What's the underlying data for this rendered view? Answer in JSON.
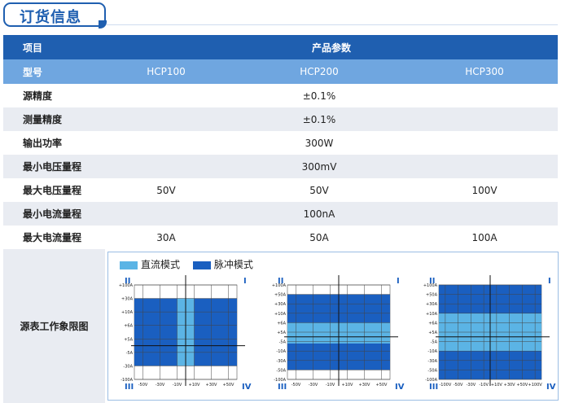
{
  "title": "订货信息",
  "header": {
    "item": "项目",
    "params": "产品参数"
  },
  "model_row": {
    "label": "型号",
    "models": [
      "HCP100",
      "HCP200",
      "HCP300"
    ]
  },
  "rows": [
    {
      "label": "源精度",
      "values": [
        "",
        "±0.1%",
        ""
      ]
    },
    {
      "label": "测量精度",
      "values": [
        "",
        "±0.1%",
        ""
      ]
    },
    {
      "label": "输出功率",
      "values": [
        "",
        "300W",
        ""
      ]
    },
    {
      "label": "最小电压量程",
      "values": [
        "",
        "300mV",
        ""
      ]
    },
    {
      "label": "最大电压量程",
      "values": [
        "50V",
        "50V",
        "100V"
      ]
    },
    {
      "label": "最小电流量程",
      "values": [
        "",
        "100nA",
        ""
      ]
    },
    {
      "label": "最大电流量程",
      "values": [
        "30A",
        "50A",
        "100A"
      ]
    }
  ],
  "chart_section": {
    "label": "源表工作象限图",
    "legend": [
      {
        "label": "直流模式",
        "color": "#5bb4e5"
      },
      {
        "label": "脉冲模式",
        "color": "#1a5fc0"
      }
    ],
    "quadrant_labels": {
      "q1": "I",
      "q2": "II",
      "q3": "III",
      "q4": "IV"
    }
  },
  "chart_data": [
    {
      "type": "heatmap",
      "title": "HCP100",
      "x_ticks": [
        "-50V",
        "-30V",
        "-10V",
        "+10V",
        "+30V",
        "+50V"
      ],
      "y_ticks": [
        "+100A",
        "+30A",
        "+10A",
        "+6A",
        "+5A",
        "-5A",
        "-30A",
        "-100A"
      ],
      "dc_mode": {
        "voltage_range": [
          -10,
          10
        ],
        "current_range": [
          -30,
          30
        ]
      },
      "pulse_mode": {
        "voltage_range": [
          -50,
          50
        ],
        "current_range": [
          -30,
          30
        ]
      }
    },
    {
      "type": "heatmap",
      "title": "HCP200",
      "x_ticks": [
        "-50V",
        "-30V",
        "-10V",
        "+10V",
        "+30V",
        "+50V"
      ],
      "y_ticks": [
        "+100A",
        "+50A",
        "+30A",
        "+10A",
        "+6A",
        "+5A",
        "-5A",
        "-10A",
        "-30A",
        "-50A",
        "-100A"
      ],
      "dc_mode": {
        "voltage_range": [
          -50,
          50
        ],
        "current_range": [
          -6,
          6
        ]
      },
      "pulse_mode": {
        "voltage_range": [
          -50,
          50
        ],
        "current_range": [
          -50,
          50
        ]
      }
    },
    {
      "type": "heatmap",
      "title": "HCP300",
      "x_ticks": [
        "-100V",
        "-50V",
        "-30V",
        "-10V",
        "+10V",
        "+30V",
        "+50V",
        "+100V"
      ],
      "y_ticks": [
        "+100A",
        "+50A",
        "+30A",
        "+10A",
        "+6A",
        "+5A",
        "-5A",
        "-10A",
        "-30A",
        "-50A",
        "-100A"
      ],
      "dc_mode": {
        "voltage_range": [
          -100,
          100
        ],
        "current_range": [
          -10,
          10
        ]
      },
      "pulse_mode": {
        "voltage_range": [
          -100,
          100
        ],
        "current_range": [
          -100,
          100
        ]
      }
    }
  ]
}
